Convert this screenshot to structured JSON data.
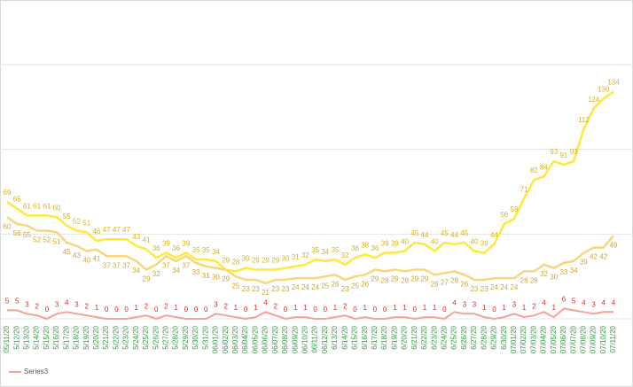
{
  "chart_data": {
    "type": "line",
    "categories": [
      "05/11/20",
      "5/12/20",
      "5/13/20",
      "5/14/20",
      "5/15/20",
      "5/16/20",
      "5/17/20",
      "5/18/20",
      "5/19/20",
      "5/20/20",
      "5/21/20",
      "5/22/20",
      "5/23/20",
      "5/24/20",
      "5/25/20",
      "5/26/20",
      "5/27/20",
      "5/28/20",
      "5/29/20",
      "5/30/20",
      "5/31/20",
      "06/01/20",
      "06/02/20",
      "06/03/20",
      "06/04/20",
      "06/05/20",
      "06/06/20",
      "06/07/20",
      "06/08/20",
      "06/09/20",
      "06/10/20",
      "06/11/20",
      "06/12/20",
      "6/13/20",
      "6/14/20",
      "6/15/20",
      "6/16/20",
      "6/17/20",
      "6/18/20",
      "6/19/20",
      "6/20/20",
      "6/21/20",
      "6/22/20",
      "6/23/20",
      "6/24/20",
      "6/25/20",
      "6/26/20",
      "6/27/20",
      "6/28/20",
      "6/29/20",
      "6/30/20",
      "07/01/20",
      "07/02/20",
      "07/03/20",
      "07/04/20",
      "07/05/20",
      "07/06/20",
      "07/07/20",
      "07/08/20",
      "07/09/20",
      "07/10/20",
      "07/11/20"
    ],
    "series": [
      {
        "color": "#ffe93a",
        "label_color": "#d6b420",
        "values": [
          69,
          65,
          61,
          61,
          61,
          60,
          55,
          52,
          51,
          46,
          47,
          47,
          47,
          43,
          41,
          36,
          39,
          36,
          39,
          35,
          35,
          34,
          29,
          28,
          30,
          29,
          29,
          29,
          30,
          31,
          32,
          35,
          34,
          35,
          32,
          36,
          38,
          36,
          39,
          39,
          40,
          45,
          44,
          40,
          45,
          44,
          45,
          40,
          39,
          44,
          56,
          59,
          71,
          82,
          84,
          93,
          91,
          93,
          112,
          124,
          130,
          134
        ]
      },
      {
        "color": "#f7d77c",
        "label_color": "#cfa53a",
        "values": [
          60,
          56,
          55,
          52,
          52,
          51,
          45,
          43,
          40,
          41,
          37,
          37,
          37,
          34,
          29,
          32,
          37,
          34,
          37,
          33,
          31,
          30,
          29,
          25,
          23,
          23,
          21,
          23,
          23,
          24,
          24,
          24,
          25,
          26,
          23,
          25,
          26,
          29,
          28,
          29,
          28,
          29,
          29,
          26,
          27,
          28,
          26,
          23,
          23,
          24,
          24,
          24,
          28,
          28,
          32,
          30,
          33,
          34,
          39,
          42,
          42,
          49
        ]
      },
      {
        "name": "Series3",
        "color": "#f4a292",
        "label_color": "#e8262a",
        "values": [
          5,
          5,
          3,
          2,
          0,
          3,
          4,
          3,
          2,
          1,
          0,
          0,
          0,
          1,
          2,
          0,
          2,
          1,
          0,
          0,
          0,
          3,
          2,
          1,
          0,
          1,
          4,
          2,
          0,
          1,
          1,
          0,
          0,
          1,
          2,
          0,
          1,
          0,
          0,
          1,
          1,
          0,
          1,
          1,
          0,
          4,
          3,
          3,
          1,
          0,
          1,
          3,
          1,
          2,
          4,
          1,
          6,
          5,
          4,
          3,
          4,
          4
        ]
      }
    ],
    "ylim": [
      0,
      150
    ],
    "yticks": [
      0,
      50,
      100,
      150
    ],
    "grid": true,
    "legend": "bottom-left",
    "x_label_color": "#2e9e3e"
  }
}
